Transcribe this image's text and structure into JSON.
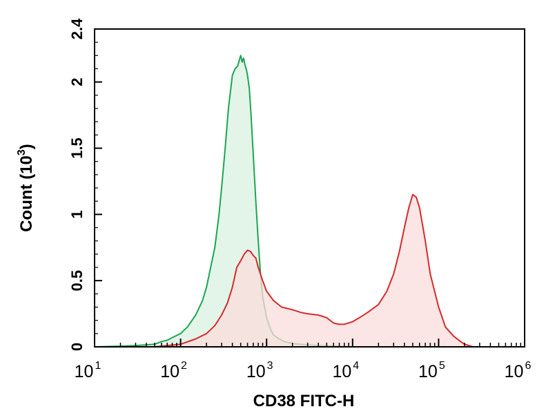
{
  "chart_data": {
    "type": "area",
    "x_scale": "log",
    "xlabel": "CD38 FITC-H",
    "ylabel": "Count (10",
    "ylabel_exp": "3",
    "ylabel_close": ")",
    "xlim": [
      10,
      1000000
    ],
    "ylim": [
      0,
      2.4
    ],
    "xticks": [
      {
        "value": 10,
        "base": "10",
        "exp": "1"
      },
      {
        "value": 100,
        "base": "10",
        "exp": "2"
      },
      {
        "value": 1000,
        "base": "10",
        "exp": "3"
      },
      {
        "value": 10000,
        "base": "10",
        "exp": "4"
      },
      {
        "value": 100000,
        "base": "10",
        "exp": "5"
      },
      {
        "value": 1000000,
        "base": "10",
        "exp": "6"
      }
    ],
    "yticks": [
      {
        "value": 0,
        "label": "0"
      },
      {
        "value": 0.5,
        "label": "0.5"
      },
      {
        "value": 1,
        "label": "1"
      },
      {
        "value": 1.5,
        "label": "1.5"
      },
      {
        "value": 2,
        "label": "2"
      },
      {
        "value": 2.4,
        "label": "2.4"
      }
    ],
    "grid": false,
    "legend": "none",
    "series": [
      {
        "color": "#1aa650",
        "fill": "#d9f2e2",
        "x": [
          10,
          20,
          30,
          40,
          50,
          60,
          70,
          80,
          100,
          120,
          150,
          180,
          200,
          250,
          280,
          300,
          330,
          360,
          400,
          430,
          460,
          500,
          520,
          540,
          560,
          580,
          600,
          630,
          660,
          700,
          750,
          800,
          850,
          900,
          1000,
          1100,
          1200,
          1400,
          1600,
          2000,
          2500,
          3000,
          4000,
          5000,
          7000,
          10000
        ],
        "y": [
          0.0,
          0.005,
          0.01,
          0.015,
          0.02,
          0.04,
          0.05,
          0.07,
          0.1,
          0.15,
          0.24,
          0.35,
          0.45,
          0.75,
          1.0,
          1.2,
          1.5,
          1.8,
          2.05,
          2.1,
          2.12,
          2.2,
          2.15,
          2.18,
          2.13,
          2.1,
          2.05,
          1.95,
          1.75,
          1.45,
          1.1,
          0.8,
          0.55,
          0.38,
          0.22,
          0.14,
          0.09,
          0.06,
          0.04,
          0.025,
          0.02,
          0.015,
          0.01,
          0.008,
          0.004,
          0.0
        ]
      },
      {
        "color": "#d42a2a",
        "fill": "#fbdcdc",
        "x": [
          10,
          50,
          100,
          150,
          200,
          250,
          300,
          350,
          400,
          450,
          500,
          550,
          600,
          650,
          700,
          750,
          800,
          900,
          1000,
          1200,
          1500,
          2000,
          2500,
          3000,
          4000,
          5000,
          6000,
          7000,
          8000,
          10000,
          12000,
          15000,
          20000,
          25000,
          30000,
          35000,
          40000,
          45000,
          50000,
          55000,
          60000,
          70000,
          80000,
          100000,
          120000,
          150000,
          180000,
          200000,
          250000
        ],
        "y": [
          0.0,
          0.0,
          0.02,
          0.06,
          0.1,
          0.16,
          0.24,
          0.33,
          0.45,
          0.6,
          0.65,
          0.7,
          0.73,
          0.72,
          0.69,
          0.67,
          0.6,
          0.5,
          0.42,
          0.35,
          0.3,
          0.28,
          0.26,
          0.25,
          0.24,
          0.22,
          0.18,
          0.17,
          0.17,
          0.19,
          0.22,
          0.26,
          0.32,
          0.42,
          0.55,
          0.72,
          0.9,
          1.05,
          1.15,
          1.13,
          1.05,
          0.8,
          0.55,
          0.3,
          0.15,
          0.08,
          0.04,
          0.02,
          0.0
        ]
      }
    ]
  }
}
